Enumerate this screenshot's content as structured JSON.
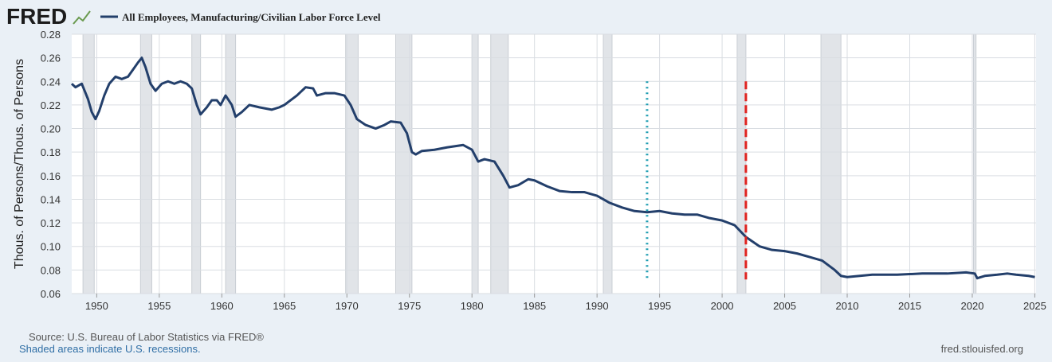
{
  "header": {
    "logo": "FRED"
  },
  "chart_data": {
    "type": "line",
    "y_label": "Thous. of Persons/Thous. of Persons",
    "x": [
      1948.0,
      1948.3,
      1948.8,
      1949.3,
      1949.6,
      1949.9,
      1950.2,
      1950.6,
      1951.0,
      1951.5,
      1952.0,
      1952.5,
      1952.9,
      1953.3,
      1953.6,
      1953.9,
      1954.3,
      1954.7,
      1955.2,
      1955.7,
      1956.2,
      1956.7,
      1957.2,
      1957.6,
      1958.0,
      1958.3,
      1958.8,
      1959.2,
      1959.6,
      1959.9,
      1960.3,
      1960.8,
      1961.1,
      1961.6,
      1962.2,
      1963.0,
      1964.0,
      1964.6,
      1965.0,
      1966.0,
      1966.7,
      1967.3,
      1967.6,
      1968.3,
      1969.0,
      1969.8,
      1970.3,
      1970.8,
      1971.5,
      1972.3,
      1973.0,
      1973.5,
      1974.3,
      1974.8,
      1975.2,
      1975.5,
      1976.0,
      1977.0,
      1978.0,
      1979.3,
      1980.0,
      1980.5,
      1981.0,
      1981.8,
      1982.5,
      1983.0,
      1983.7,
      1984.5,
      1985.0,
      1986.0,
      1987.0,
      1988.0,
      1989.0,
      1990.0,
      1991.0,
      1992.0,
      1993.0,
      1994.0,
      1995.0,
      1996.0,
      1997.0,
      1998.0,
      1999.0,
      2000.0,
      2001.0,
      2001.9,
      2003.0,
      2004.0,
      2005.0,
      2006.0,
      2007.0,
      2008.0,
      2009.0,
      2009.5,
      2010.0,
      2011.0,
      2012.0,
      2014.0,
      2016.0,
      2018.0,
      2019.5,
      2020.2,
      2020.4,
      2021.0,
      2022.0,
      2022.8,
      2023.5,
      2024.5,
      2025.0
    ],
    "series": [
      {
        "name": "All Employees, Manufacturing/Civilian Labor Force Level",
        "color": "#233f6b",
        "values": [
          0.238,
          0.235,
          0.238,
          0.225,
          0.214,
          0.208,
          0.215,
          0.228,
          0.238,
          0.244,
          0.242,
          0.244,
          0.25,
          0.256,
          0.26,
          0.252,
          0.238,
          0.232,
          0.238,
          0.24,
          0.238,
          0.24,
          0.238,
          0.234,
          0.22,
          0.212,
          0.218,
          0.224,
          0.224,
          0.22,
          0.228,
          0.22,
          0.21,
          0.214,
          0.22,
          0.218,
          0.216,
          0.218,
          0.22,
          0.228,
          0.235,
          0.234,
          0.228,
          0.23,
          0.23,
          0.228,
          0.22,
          0.208,
          0.203,
          0.2,
          0.203,
          0.206,
          0.205,
          0.196,
          0.18,
          0.178,
          0.181,
          0.182,
          0.184,
          0.186,
          0.182,
          0.172,
          0.174,
          0.172,
          0.16,
          0.15,
          0.152,
          0.157,
          0.156,
          0.151,
          0.147,
          0.146,
          0.146,
          0.143,
          0.137,
          0.133,
          0.13,
          0.129,
          0.13,
          0.128,
          0.127,
          0.127,
          0.124,
          0.122,
          0.118,
          0.108,
          0.1,
          0.097,
          0.096,
          0.094,
          0.091,
          0.088,
          0.08,
          0.075,
          0.074,
          0.075,
          0.076,
          0.076,
          0.077,
          0.077,
          0.078,
          0.077,
          0.073,
          0.075,
          0.076,
          0.077,
          0.076,
          0.075,
          0.074
        ]
      }
    ],
    "xlim": [
      1948.0,
      2025.1
    ],
    "ylim": [
      0.06,
      0.28
    ],
    "xticks": [
      1950,
      1955,
      1960,
      1965,
      1970,
      1975,
      1980,
      1985,
      1990,
      1995,
      2000,
      2005,
      2010,
      2015,
      2020,
      2025
    ],
    "yticks": [
      0.06,
      0.08,
      {
        "value": 0.1,
        "label": "0.10"
      },
      0.12,
      0.14,
      0.16,
      0.18,
      {
        "value": 0.2,
        "label": "0.20"
      },
      0.22,
      0.24,
      0.26,
      0.28
    ],
    "grid": true,
    "recession_color": "#e1e4e8",
    "recessions": [
      [
        1948.9,
        1949.8
      ],
      [
        1953.5,
        1954.4
      ],
      [
        1957.6,
        1958.3
      ],
      [
        1960.3,
        1961.1
      ],
      [
        1969.9,
        1970.9
      ],
      [
        1973.9,
        1975.2
      ],
      [
        1980.0,
        1980.5
      ],
      [
        1981.5,
        1982.9
      ],
      [
        1990.5,
        1991.2
      ],
      [
        2001.2,
        2001.9
      ],
      [
        2007.9,
        2009.5
      ],
      [
        2020.1,
        2020.3
      ]
    ],
    "vlines": [
      {
        "x": 1994.0,
        "ymin": 0.072,
        "ymax": 0.24,
        "color": "#1a9bb0",
        "style": "dotted"
      },
      {
        "x": 2001.9,
        "ymin": 0.072,
        "ymax": 0.24,
        "color": "#e0231f",
        "style": "dashed"
      }
    ]
  },
  "footer": {
    "source": "Source: U.S. Bureau of Labor Statistics via FRED®",
    "note": "Shaded areas indicate U.S. recessions.",
    "url": "fred.stlouisfed.org"
  }
}
